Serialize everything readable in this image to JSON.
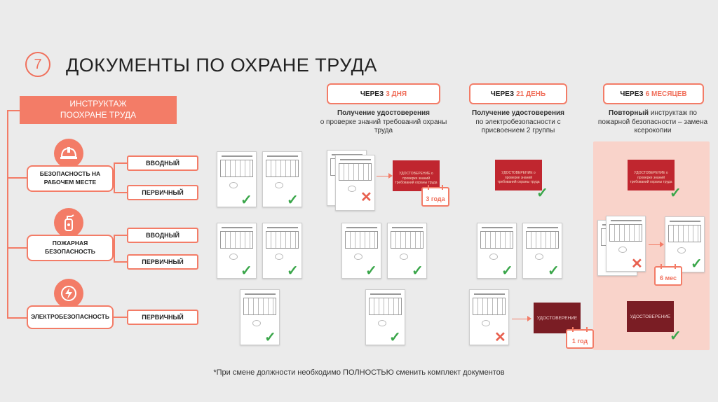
{
  "slide": {
    "number": "7",
    "title": "ДОКУМЕНТЫ ПО ОХРАНЕ ТРУДА",
    "main_box": "ИНСТРУКТАЖ ПООХРАНЕ ТРУДА",
    "categories": [
      {
        "label": "БЕЗОПАСНОСТЬ НА РАБОЧЕМ МЕСТЕ",
        "icon": "hard-hat-icon",
        "subs": [
          "ВВОДНЫЙ",
          "ПЕРВИЧНЫЙ"
        ]
      },
      {
        "label": "ПОЖАРНАЯ БЕЗОПАСНОСТЬ",
        "icon": "fire-extinguisher-icon",
        "subs": [
          "ВВОДНЫЙ",
          "ПЕРВИЧНЫЙ"
        ]
      },
      {
        "label": "ЭЛЕКТРОБЕЗОПАСНОСТЬ",
        "icon": "lightning-icon",
        "subs": [
          "ПЕРВИЧНЫЙ"
        ]
      }
    ],
    "periods": [
      {
        "prefix": "ЧЕРЕЗ",
        "value": "3 ДНЯ",
        "desc_bold": "Получение удостоверения",
        "desc": "о проверке знаний требований охраны труда"
      },
      {
        "prefix": "ЧЕРЕЗ",
        "value": "21 ДЕНЬ",
        "desc_bold": "Получение удостоверения",
        "desc": "по электробезопасности с присвоением 2 группы"
      },
      {
        "prefix": "ЧЕРЕЗ",
        "value": "6 МЕСЯЦЕВ",
        "desc_bold": "Повторный",
        "desc": "инструктаж по пожарной безопасности – замена ксерокопии"
      }
    ],
    "cert_red_text": "УДОСТОВЕРЕНИЕ о проверке знаний требований охраны труда",
    "cert_dark_text": "УДОСТОВЕРЕНИЕ",
    "calendars": [
      "3 года",
      "1 год",
      "6 мес"
    ],
    "footer": "*При смене должности необходимо ПОЛНОСТЬЮ сменить комплект документов"
  },
  "colors": {
    "accent": "#f37c67",
    "cert_red": "#c0262f",
    "cert_dark": "#7a1d24",
    "check": "#3aa64a"
  }
}
